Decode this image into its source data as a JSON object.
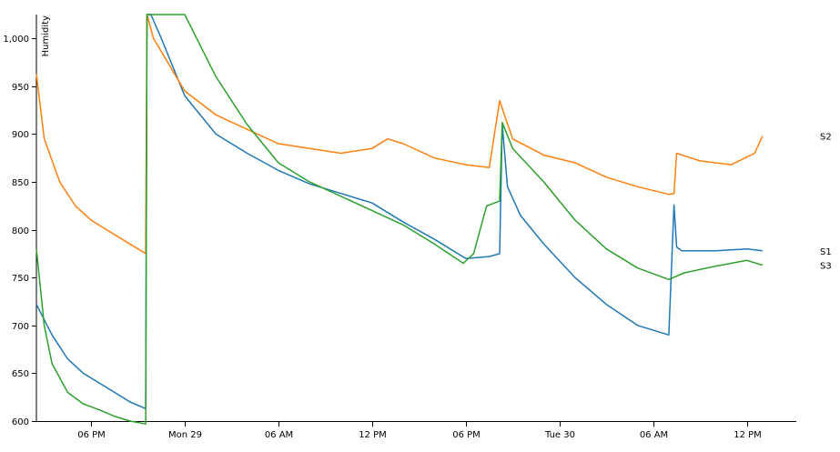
{
  "chart_data": {
    "type": "line",
    "title": "",
    "xlabel": "",
    "ylabel": "Humidity",
    "ylim": [
      600,
      1025
    ],
    "xlim": [
      "2020-03-28T14:30",
      "2020-03-30T15:10"
    ],
    "grid": false,
    "legend": "series names at end of lines (right)",
    "yticks": [
      600,
      650,
      700,
      750,
      800,
      850,
      900,
      950,
      1000
    ],
    "ytick_labels": [
      "600",
      "650",
      "700",
      "750",
      "800",
      "850",
      "900",
      "950",
      "1,000"
    ],
    "xticks": [
      "2020-03-28T18:00",
      "2020-03-29T00:00",
      "2020-03-29T06:00",
      "2020-03-29T12:00",
      "2020-03-29T18:00",
      "2020-03-30T00:00",
      "2020-03-30T06:00",
      "2020-03-30T12:00"
    ],
    "xtick_labels": [
      "06 PM",
      "Mon 29",
      "06 AM",
      "12 PM",
      "06 PM",
      "Tue 30",
      "06 AM",
      "12 PM"
    ],
    "series": [
      {
        "name": "S1",
        "color": "#1f77b4",
        "x": [
          "2020-03-28T14:30",
          "2020-03-28T15:30",
          "2020-03-28T16:30",
          "2020-03-28T17:30",
          "2020-03-28T18:30",
          "2020-03-28T19:30",
          "2020-03-28T20:30",
          "2020-03-28T21:30",
          "2020-03-28T21:35",
          "2020-03-28T21:50",
          "2020-03-28T22:30",
          "2020-03-29T00:00",
          "2020-03-29T02:00",
          "2020-03-29T04:00",
          "2020-03-29T06:00",
          "2020-03-29T08:00",
          "2020-03-29T10:00",
          "2020-03-29T12:00",
          "2020-03-29T14:00",
          "2020-03-29T16:00",
          "2020-03-29T18:00",
          "2020-03-29T19:30",
          "2020-03-29T20:10",
          "2020-03-29T20:20",
          "2020-03-29T20:40",
          "2020-03-29T21:30",
          "2020-03-29T23:00",
          "2020-03-30T01:00",
          "2020-03-30T03:00",
          "2020-03-30T05:00",
          "2020-03-30T07:00",
          "2020-03-30T07:20",
          "2020-03-30T07:30",
          "2020-03-30T07:50",
          "2020-03-30T10:00",
          "2020-03-30T12:00",
          "2020-03-30T13:00"
        ],
        "values": [
          722,
          690,
          665,
          650,
          640,
          630,
          620,
          613,
          1025,
          1025,
          1000,
          940,
          900,
          880,
          862,
          848,
          838,
          828,
          808,
          790,
          770,
          772,
          775,
          910,
          845,
          815,
          785,
          750,
          722,
          700,
          690,
          826,
          782,
          778,
          778,
          780,
          778
        ]
      },
      {
        "name": "S2",
        "color": "#ff7f0e",
        "x": [
          "2020-03-28T14:30",
          "2020-03-28T15:00",
          "2020-03-28T16:00",
          "2020-03-28T17:00",
          "2020-03-28T18:00",
          "2020-03-28T19:00",
          "2020-03-28T20:00",
          "2020-03-28T21:30",
          "2020-03-28T21:35",
          "2020-03-28T22:00",
          "2020-03-29T00:00",
          "2020-03-29T02:00",
          "2020-03-29T04:00",
          "2020-03-29T06:00",
          "2020-03-29T08:00",
          "2020-03-29T10:00",
          "2020-03-29T12:00",
          "2020-03-29T13:00",
          "2020-03-29T14:00",
          "2020-03-29T16:00",
          "2020-03-29T18:00",
          "2020-03-29T19:30",
          "2020-03-29T20:10",
          "2020-03-29T21:00",
          "2020-03-29T23:00",
          "2020-03-30T01:00",
          "2020-03-30T03:00",
          "2020-03-30T05:00",
          "2020-03-30T07:00",
          "2020-03-30T07:20",
          "2020-03-30T07:30",
          "2020-03-30T09:00",
          "2020-03-30T11:00",
          "2020-03-30T12:30",
          "2020-03-30T13:00"
        ],
        "values": [
          963,
          895,
          850,
          825,
          810,
          800,
          790,
          775,
          1025,
          1000,
          945,
          920,
          905,
          890,
          885,
          880,
          885,
          895,
          890,
          875,
          868,
          865,
          935,
          895,
          878,
          870,
          855,
          845,
          837,
          838,
          880,
          872,
          868,
          880,
          898
        ]
      },
      {
        "name": "S3",
        "color": "#2ca02c",
        "x": [
          "2020-03-28T14:30",
          "2020-03-28T15:00",
          "2020-03-28T15:30",
          "2020-03-28T16:30",
          "2020-03-28T17:30",
          "2020-03-28T18:30",
          "2020-03-28T19:30",
          "2020-03-28T20:30",
          "2020-03-28T21:30",
          "2020-03-28T21:35",
          "2020-03-29T00:00",
          "2020-03-29T02:00",
          "2020-03-29T04:00",
          "2020-03-29T06:00",
          "2020-03-29T08:00",
          "2020-03-29T10:00",
          "2020-03-29T12:00",
          "2020-03-29T14:00",
          "2020-03-29T16:00",
          "2020-03-29T17:50",
          "2020-03-29T18:30",
          "2020-03-29T19:20",
          "2020-03-29T20:10",
          "2020-03-29T20:20",
          "2020-03-29T21:00",
          "2020-03-29T23:00",
          "2020-03-30T01:00",
          "2020-03-30T03:00",
          "2020-03-30T05:00",
          "2020-03-30T07:00",
          "2020-03-30T08:00",
          "2020-03-30T10:00",
          "2020-03-30T12:00",
          "2020-03-30T13:00"
        ],
        "values": [
          780,
          700,
          660,
          630,
          618,
          612,
          605,
          600,
          597,
          1025,
          1025,
          960,
          910,
          870,
          850,
          835,
          820,
          805,
          785,
          765,
          775,
          825,
          830,
          912,
          885,
          850,
          810,
          780,
          760,
          748,
          755,
          762,
          768,
          763
        ]
      }
    ]
  }
}
